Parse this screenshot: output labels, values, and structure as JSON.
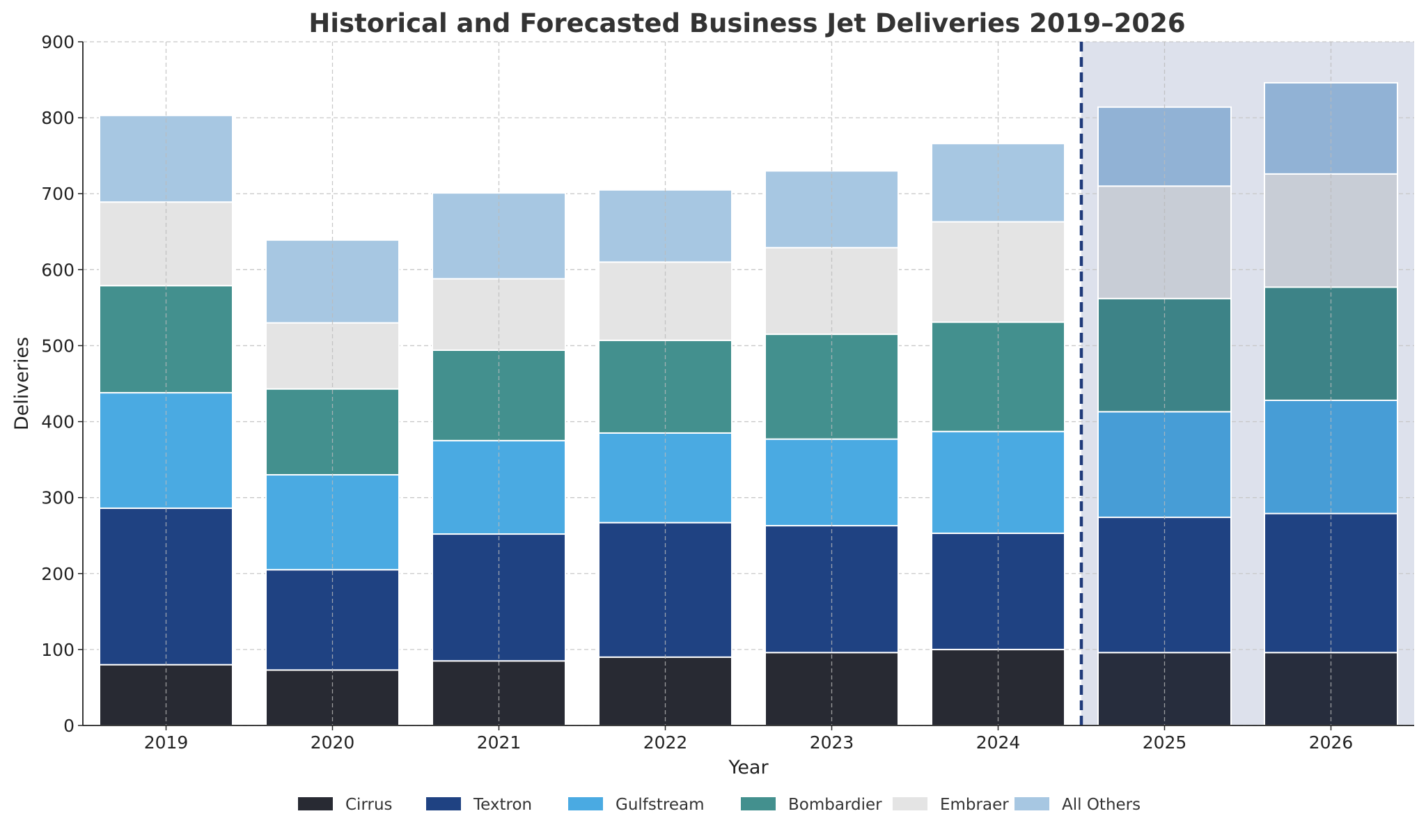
{
  "chart_data": {
    "type": "bar",
    "stacked": true,
    "title": "Historical and Forecasted Business Jet Deliveries 2019–2026",
    "xlabel": "Year",
    "ylabel": "Deliveries",
    "ylim": [
      0,
      900
    ],
    "yticks": [
      0,
      100,
      200,
      300,
      400,
      500,
      600,
      700,
      800,
      900
    ],
    "grid": true,
    "legend_position": "bottom",
    "categories": [
      "2019",
      "2020",
      "2021",
      "2022",
      "2023",
      "2024",
      "2025",
      "2026"
    ],
    "forecast_categories": [
      "2025",
      "2026"
    ],
    "series": [
      {
        "name": "Cirrus",
        "color": "#282a33",
        "forecast_color": "#272d3d",
        "values": [
          80,
          73,
          85,
          90,
          96,
          100,
          96,
          96
        ]
      },
      {
        "name": "Textron",
        "color": "#1f4282",
        "forecast_color": "#1f4282",
        "values": [
          206,
          132,
          167,
          177,
          167,
          153,
          178,
          183
        ]
      },
      {
        "name": "Gulfstream",
        "color": "#4aaae2",
        "forecast_color": "#479dd6",
        "values": [
          152,
          125,
          123,
          118,
          114,
          134,
          139,
          149
        ]
      },
      {
        "name": "Bombardier",
        "color": "#43908e",
        "forecast_color": "#3d8387",
        "values": [
          141,
          113,
          119,
          122,
          138,
          144,
          149,
          149
        ]
      },
      {
        "name": "Embraer",
        "color": "#e4e4e4",
        "forecast_color": "#c8cdd6",
        "values": [
          110,
          87,
          94,
          103,
          114,
          132,
          148,
          149
        ]
      },
      {
        "name": "All Others",
        "color": "#a7c7e2",
        "forecast_color": "#91b2d5",
        "values": [
          114,
          109,
          113,
          95,
          101,
          103,
          104,
          120
        ]
      }
    ],
    "forecast_shade_color": "#dde1ec",
    "forecast_divider_color": "#1f3a7a"
  }
}
